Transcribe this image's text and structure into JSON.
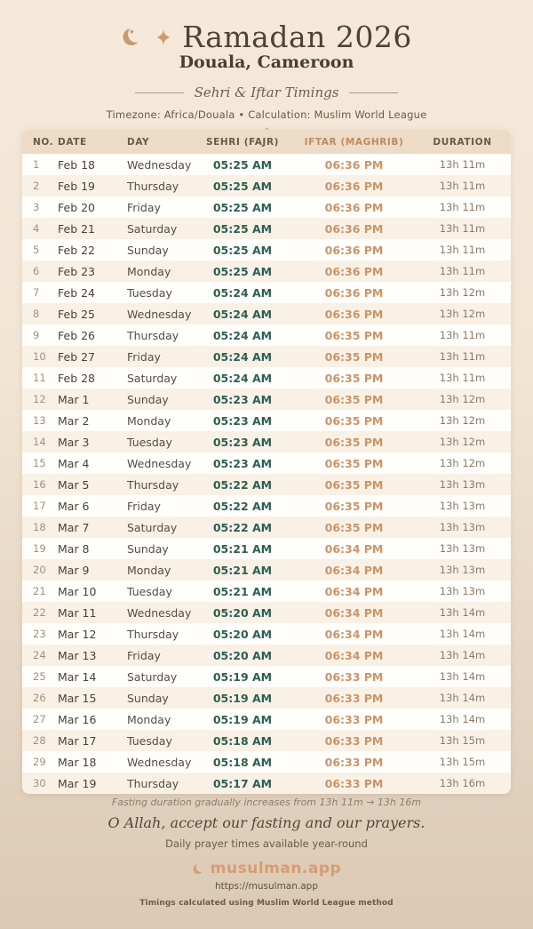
{
  "header": {
    "title": "Ramadan 2026",
    "location": "Douala, Cameroon",
    "subtitle": "Sehri & Iftar Timings",
    "meta": "Timezone: Africa/Douala • Calculation: Muslim World League"
  },
  "icons": {
    "crescent_star": "crescent-moon-with-star",
    "sparkle": "four-pointed-star",
    "brand_crescent": "crescent-moon"
  },
  "colors": {
    "accent_orange": "#c98f63",
    "accent_teal": "#2f5f54",
    "header_band": "#ecdbc6",
    "brand": "#d69d72",
    "bg_top": "#f5e9da",
    "bg_bottom": "#dbc9b5"
  },
  "table": {
    "columns": [
      "NO.",
      "DATE",
      "DAY",
      "SEHRI (FAJR)",
      "IFTAR (MAGHRIB)",
      "DURATION"
    ],
    "rows": [
      [
        "1",
        "Feb 18",
        "Wednesday",
        "05:25 AM",
        "06:36 PM",
        "13h 11m"
      ],
      [
        "2",
        "Feb 19",
        "Thursday",
        "05:25 AM",
        "06:36 PM",
        "13h 11m"
      ],
      [
        "3",
        "Feb 20",
        "Friday",
        "05:25 AM",
        "06:36 PM",
        "13h 11m"
      ],
      [
        "4",
        "Feb 21",
        "Saturday",
        "05:25 AM",
        "06:36 PM",
        "13h 11m"
      ],
      [
        "5",
        "Feb 22",
        "Sunday",
        "05:25 AM",
        "06:36 PM",
        "13h 11m"
      ],
      [
        "6",
        "Feb 23",
        "Monday",
        "05:25 AM",
        "06:36 PM",
        "13h 11m"
      ],
      [
        "7",
        "Feb 24",
        "Tuesday",
        "05:24 AM",
        "06:36 PM",
        "13h 12m"
      ],
      [
        "8",
        "Feb 25",
        "Wednesday",
        "05:24 AM",
        "06:36 PM",
        "13h 12m"
      ],
      [
        "9",
        "Feb 26",
        "Thursday",
        "05:24 AM",
        "06:35 PM",
        "13h 11m"
      ],
      [
        "10",
        "Feb 27",
        "Friday",
        "05:24 AM",
        "06:35 PM",
        "13h 11m"
      ],
      [
        "11",
        "Feb 28",
        "Saturday",
        "05:24 AM",
        "06:35 PM",
        "13h 11m"
      ],
      [
        "12",
        "Mar 1",
        "Sunday",
        "05:23 AM",
        "06:35 PM",
        "13h 12m"
      ],
      [
        "13",
        "Mar 2",
        "Monday",
        "05:23 AM",
        "06:35 PM",
        "13h 12m"
      ],
      [
        "14",
        "Mar 3",
        "Tuesday",
        "05:23 AM",
        "06:35 PM",
        "13h 12m"
      ],
      [
        "15",
        "Mar 4",
        "Wednesday",
        "05:23 AM",
        "06:35 PM",
        "13h 12m"
      ],
      [
        "16",
        "Mar 5",
        "Thursday",
        "05:22 AM",
        "06:35 PM",
        "13h 13m"
      ],
      [
        "17",
        "Mar 6",
        "Friday",
        "05:22 AM",
        "06:35 PM",
        "13h 13m"
      ],
      [
        "18",
        "Mar 7",
        "Saturday",
        "05:22 AM",
        "06:35 PM",
        "13h 13m"
      ],
      [
        "19",
        "Mar 8",
        "Sunday",
        "05:21 AM",
        "06:34 PM",
        "13h 13m"
      ],
      [
        "20",
        "Mar 9",
        "Monday",
        "05:21 AM",
        "06:34 PM",
        "13h 13m"
      ],
      [
        "21",
        "Mar 10",
        "Tuesday",
        "05:21 AM",
        "06:34 PM",
        "13h 13m"
      ],
      [
        "22",
        "Mar 11",
        "Wednesday",
        "05:20 AM",
        "06:34 PM",
        "13h 14m"
      ],
      [
        "23",
        "Mar 12",
        "Thursday",
        "05:20 AM",
        "06:34 PM",
        "13h 14m"
      ],
      [
        "24",
        "Mar 13",
        "Friday",
        "05:20 AM",
        "06:34 PM",
        "13h 14m"
      ],
      [
        "25",
        "Mar 14",
        "Saturday",
        "05:19 AM",
        "06:33 PM",
        "13h 14m"
      ],
      [
        "26",
        "Mar 15",
        "Sunday",
        "05:19 AM",
        "06:33 PM",
        "13h 14m"
      ],
      [
        "27",
        "Mar 16",
        "Monday",
        "05:19 AM",
        "06:33 PM",
        "13h 14m"
      ],
      [
        "28",
        "Mar 17",
        "Tuesday",
        "05:18 AM",
        "06:33 PM",
        "13h 15m"
      ],
      [
        "29",
        "Mar 18",
        "Wednesday",
        "05:18 AM",
        "06:33 PM",
        "13h 15m"
      ],
      [
        "30",
        "Mar 19",
        "Thursday",
        "05:17 AM",
        "06:33 PM",
        "13h 16m"
      ]
    ]
  },
  "footer": {
    "fast_note": "Fasting duration gradually increases from 13h 11m → 13h 16m",
    "dua": "O Allah, accept our fasting and our prayers.",
    "tagline": "Daily prayer times available year-round",
    "brand": "musulman.app",
    "url": "https://musulman.app",
    "method": "Timings calculated using Muslim World League method"
  }
}
